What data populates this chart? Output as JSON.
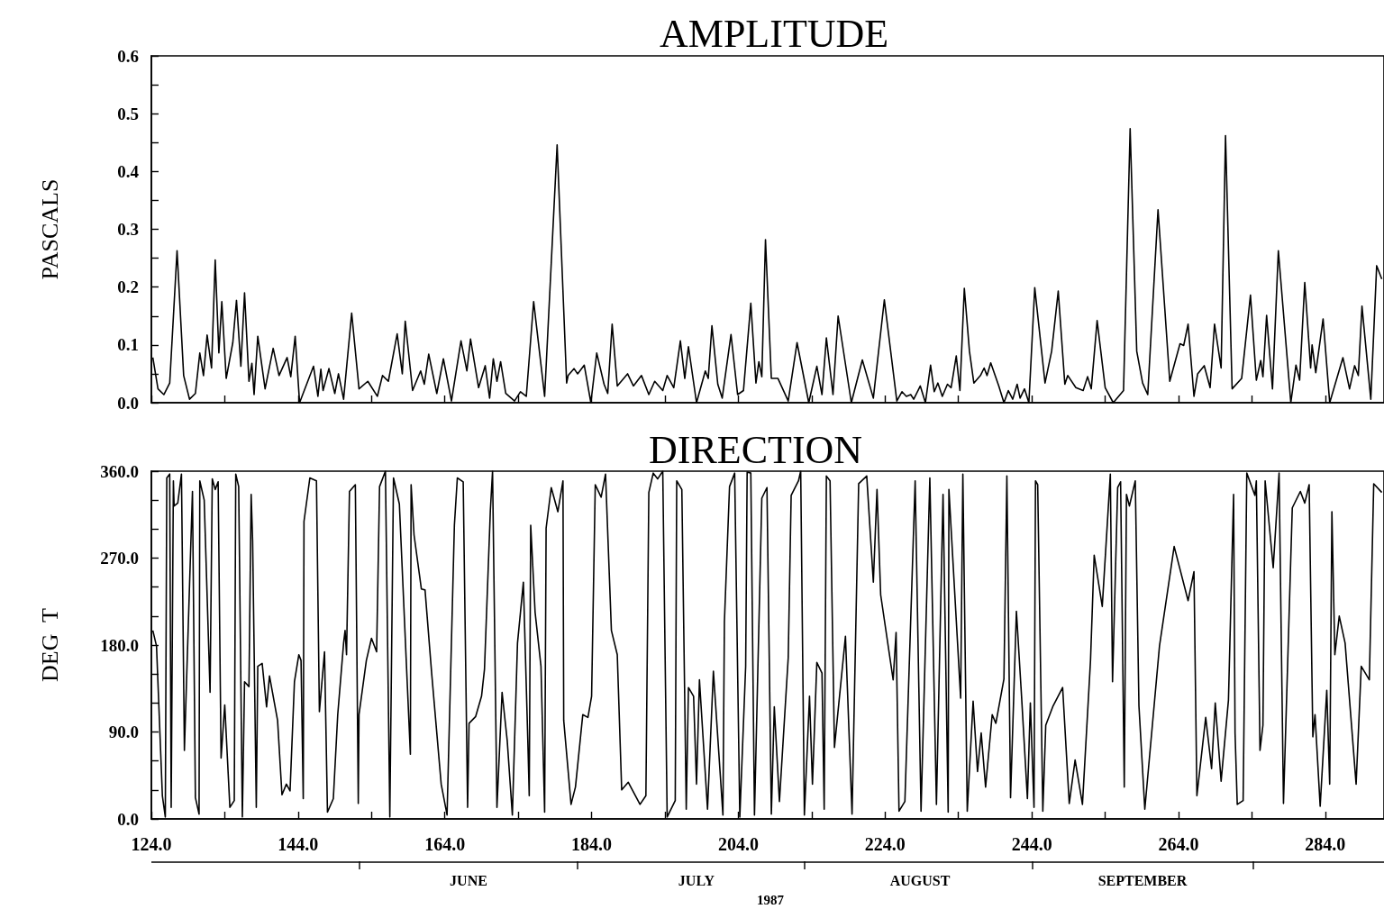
{
  "chart_data": [
    {
      "type": "line",
      "title": "AMPLITUDE",
      "ylabel": "PASCALS",
      "color": "#000000",
      "marker": "none",
      "line_style": "solid",
      "grid": false,
      "tick_labels": "y",
      "xlim": [
        124,
        292
      ],
      "xticks": [
        {
          "value": 124,
          "label": null
        },
        {
          "value": 134,
          "label": null
        },
        {
          "value": 144,
          "label": null
        },
        {
          "value": 154,
          "label": null
        },
        {
          "value": 164,
          "label": null
        },
        {
          "value": 174,
          "label": null
        },
        {
          "value": 184,
          "label": null
        },
        {
          "value": 194,
          "label": null
        },
        {
          "value": 204,
          "label": null
        },
        {
          "value": 214,
          "label": null
        },
        {
          "value": 224,
          "label": null
        },
        {
          "value": 234,
          "label": null
        },
        {
          "value": 244,
          "label": null
        },
        {
          "value": 254,
          "label": null
        },
        {
          "value": 264,
          "label": null
        },
        {
          "value": 274,
          "label": null
        },
        {
          "value": 284,
          "label": null
        }
      ],
      "ylim": [
        0,
        0.6
      ],
      "yticks": [
        {
          "value": 0,
          "label": "0.0"
        },
        {
          "value": 0.05,
          "label": null
        },
        {
          "value": 0.1,
          "label": "0.1"
        },
        {
          "value": 0.15,
          "label": null
        },
        {
          "value": 0.2,
          "label": "0.2"
        },
        {
          "value": 0.25,
          "label": null
        },
        {
          "value": 0.3,
          "label": "0.3"
        },
        {
          "value": 0.35,
          "label": null
        },
        {
          "value": 0.4,
          "label": "0.4"
        },
        {
          "value": 0.45,
          "label": null
        },
        {
          "value": 0.5,
          "label": "0.5"
        },
        {
          "value": 0.55,
          "label": null
        },
        {
          "value": 0.6,
          "label": "0.6"
        }
      ],
      "x": [
        124.2,
        124.9,
        125.7,
        126.5,
        127.5,
        128.4,
        129.2,
        130.0,
        130.6,
        131.1,
        131.6,
        132.2,
        132.7,
        133.2,
        133.6,
        134.2,
        135.1,
        135.6,
        136.2,
        136.7,
        137.3,
        137.7,
        138.0,
        138.5,
        139.5,
        140.6,
        141.4,
        142.5,
        143.0,
        143.6,
        144.2,
        146.1,
        146.7,
        147.1,
        147.4,
        148.2,
        149.0,
        149.5,
        150.2,
        151.3,
        152.3,
        153.5,
        154.8,
        155.5,
        156.3,
        157.5,
        158.2,
        158.6,
        159.6,
        160.7,
        161.2,
        161.8,
        162.9,
        163.8,
        164.9,
        166.2,
        167.0,
        167.5,
        168.6,
        169.5,
        170.1,
        170.6,
        171.1,
        171.6,
        172.3,
        173.5,
        174.3,
        175.1,
        176.1,
        177.6,
        179.3,
        180.6,
        180.8,
        181.6,
        182.1,
        183.0,
        183.9,
        184.7,
        185.7,
        186.2,
        186.8,
        187.5,
        188.9,
        189.7,
        190.8,
        191.8,
        192.6,
        193.7,
        194.3,
        195.2,
        196.1,
        196.7,
        197.2,
        198.3,
        199.5,
        199.9,
        200.4,
        201.2,
        201.8,
        203.0,
        203.9,
        204.7,
        205.7,
        206.4,
        206.8,
        207.2,
        207.7,
        208.5,
        209.4,
        210.8,
        212.0,
        213.6,
        214.7,
        215.4,
        216.0,
        216.9,
        217.6,
        219.4,
        220.9,
        222.4,
        223.9,
        225.6,
        226.3,
        226.9,
        227.5,
        227.9,
        228.8,
        229.5,
        230.2,
        230.7,
        231.2,
        231.8,
        232.5,
        233.0,
        233.7,
        234.2,
        234.8,
        235.5,
        236.1,
        237.0,
        237.5,
        237.9,
        238.4,
        239.5,
        240.2,
        240.8,
        241.4,
        242.0,
        242.4,
        243.0,
        243.6,
        244.4,
        245.8,
        246.7,
        247.6,
        248.5,
        248.9,
        250.0,
        251.0,
        251.6,
        252.1,
        252.9,
        254.0,
        255.1,
        256.5,
        257.4,
        258.3,
        259.1,
        259.8,
        261.2,
        262.8,
        264.2,
        264.7,
        265.3,
        266.1,
        266.6,
        267.5,
        268.3,
        268.9,
        269.8,
        270.4,
        271.3,
        272.6,
        273.8,
        274.6,
        275.2,
        275.5,
        276.0,
        276.8,
        277.6,
        279.3,
        280.0,
        280.5,
        281.2,
        282.0,
        282.2,
        282.7,
        283.7,
        284.6,
        286.4,
        287.3,
        288.0,
        288.5,
        289.0,
        290.2,
        291.0,
        291.7
      ],
      "values": [
        0.078,
        0.024,
        0.014,
        0.034,
        0.263,
        0.047,
        0.006,
        0.016,
        0.086,
        0.047,
        0.117,
        0.06,
        0.247,
        0.086,
        0.175,
        0.042,
        0.104,
        0.177,
        0.063,
        0.19,
        0.037,
        0.068,
        0.014,
        0.115,
        0.024,
        0.094,
        0.047,
        0.078,
        0.045,
        0.115,
        0.0,
        0.063,
        0.011,
        0.058,
        0.021,
        0.059,
        0.016,
        0.05,
        0.006,
        0.155,
        0.024,
        0.037,
        0.011,
        0.047,
        0.037,
        0.119,
        0.05,
        0.141,
        0.021,
        0.055,
        0.032,
        0.084,
        0.016,
        0.076,
        0.003,
        0.107,
        0.055,
        0.11,
        0.026,
        0.064,
        0.008,
        0.076,
        0.037,
        0.071,
        0.016,
        0.003,
        0.019,
        0.011,
        0.175,
        0.011,
        0.446,
        0.034,
        0.047,
        0.059,
        0.05,
        0.065,
        0.0,
        0.086,
        0.032,
        0.016,
        0.136,
        0.029,
        0.05,
        0.029,
        0.047,
        0.014,
        0.037,
        0.021,
        0.047,
        0.026,
        0.107,
        0.042,
        0.097,
        0.0,
        0.055,
        0.042,
        0.133,
        0.032,
        0.008,
        0.118,
        0.014,
        0.021,
        0.172,
        0.034,
        0.071,
        0.045,
        0.282,
        0.042,
        0.042,
        0.003,
        0.104,
        0.0,
        0.063,
        0.014,
        0.112,
        0.014,
        0.15,
        0.0,
        0.074,
        0.008,
        0.178,
        0.003,
        0.019,
        0.011,
        0.014,
        0.006,
        0.029,
        0.0,
        0.065,
        0.019,
        0.034,
        0.011,
        0.032,
        0.026,
        0.081,
        0.021,
        0.198,
        0.089,
        0.034,
        0.047,
        0.06,
        0.047,
        0.069,
        0.029,
        0.0,
        0.021,
        0.006,
        0.032,
        0.008,
        0.024,
        0.0,
        0.199,
        0.034,
        0.089,
        0.193,
        0.032,
        0.047,
        0.026,
        0.021,
        0.045,
        0.024,
        0.142,
        0.026,
        0.0,
        0.021,
        0.474,
        0.089,
        0.034,
        0.014,
        0.334,
        0.037,
        0.102,
        0.099,
        0.136,
        0.011,
        0.05,
        0.064,
        0.026,
        0.136,
        0.06,
        0.462,
        0.024,
        0.042,
        0.186,
        0.039,
        0.073,
        0.045,
        0.151,
        0.024,
        0.263,
        0.0,
        0.065,
        0.039,
        0.208,
        0.06,
        0.1,
        0.052,
        0.145,
        0.0,
        0.078,
        0.024,
        0.064,
        0.047,
        0.167,
        0.006,
        0.237,
        0.214
      ]
    },
    {
      "type": "line",
      "title": "DIRECTION",
      "ylabel": "DEG  T",
      "color": "#000000",
      "marker": "none",
      "line_style": "solid",
      "grid": false,
      "xlim": [
        124,
        292
      ],
      "xticks": [
        {
          "value": 124,
          "label": "124.0"
        },
        {
          "value": 134,
          "label": null
        },
        {
          "value": 144,
          "label": "144.0"
        },
        {
          "value": 154,
          "label": null
        },
        {
          "value": 164,
          "label": "164.0"
        },
        {
          "value": 174,
          "label": null
        },
        {
          "value": 184,
          "label": "184.0"
        },
        {
          "value": 194,
          "label": null
        },
        {
          "value": 204,
          "label": "204.0"
        },
        {
          "value": 214,
          "label": null
        },
        {
          "value": 224,
          "label": "224.0"
        },
        {
          "value": 234,
          "label": null
        },
        {
          "value": 244,
          "label": "244.0"
        },
        {
          "value": 254,
          "label": null
        },
        {
          "value": 264,
          "label": "264.0"
        },
        {
          "value": 274,
          "label": null
        },
        {
          "value": 284,
          "label": "284.0"
        }
      ],
      "annotations": [
        "JUNE",
        "JULY",
        "AUGUST",
        "SEPTEMBER",
        "1987"
      ],
      "ylim": [
        0,
        360
      ],
      "yticks": [
        {
          "value": 0,
          "label": "0.0"
        },
        {
          "value": 30,
          "label": null
        },
        {
          "value": 60,
          "label": null
        },
        {
          "value": 90,
          "label": "90.0"
        },
        {
          "value": 120,
          "label": null
        },
        {
          "value": 150,
          "label": null
        },
        {
          "value": 180,
          "label": "180.0"
        },
        {
          "value": 210,
          "label": null
        },
        {
          "value": 240,
          "label": null
        },
        {
          "value": 270,
          "label": "270.0"
        },
        {
          "value": 300,
          "label": null
        },
        {
          "value": 330,
          "label": null
        },
        {
          "value": 360,
          "label": "360.0"
        }
      ],
      "x": [
        124.2,
        124.7,
        125.5,
        125.9,
        126.1,
        126.5,
        126.7,
        127.0,
        127.1,
        127.6,
        128.1,
        128.5,
        129.6,
        130.0,
        130.5,
        130.6,
        131.2,
        132.0,
        132.3,
        132.7,
        133.1,
        133.5,
        134.0,
        134.7,
        135.3,
        135.5,
        135.9,
        136.4,
        136.7,
        137.3,
        137.6,
        137.8,
        138.3,
        138.5,
        139.1,
        139.7,
        140.1,
        141.2,
        141.8,
        142.4,
        142.9,
        143.5,
        144.1,
        144.4,
        144.7,
        144.8,
        145.6,
        146.5,
        146.9,
        147.6,
        148.0,
        148.8,
        149.4,
        150.2,
        150.4,
        150.6,
        151.0,
        151.8,
        152.2,
        152.3,
        153.3,
        154.0,
        154.7,
        155.1,
        155.9,
        156.5,
        157.0,
        157.8,
        159.3,
        159.4,
        159.8,
        160.8,
        161.3,
        162.2,
        163.5,
        164.3,
        165.3,
        165.7,
        166.5,
        167.1,
        167.3,
        168.2,
        169.0,
        169.4,
        170.2,
        170.5,
        171.1,
        171.8,
        172.5,
        173.2,
        173.9,
        174.7,
        175.3,
        175.5,
        175.7,
        176.3,
        177.1,
        177.6,
        177.8,
        178.5,
        179.4,
        180.1,
        180.2,
        181.2,
        181.8,
        182.8,
        183.5,
        184.0,
        184.5,
        185.3,
        185.9,
        186.7,
        187.5,
        188.1,
        189.0,
        190.6,
        191.4,
        191.8,
        192.4,
        193.0,
        193.7,
        194.3,
        195.4,
        195.6,
        196.3,
        196.9,
        197.2,
        197.9,
        198.3,
        198.7,
        199.8,
        200.6,
        201.9,
        202.1,
        202.8,
        203.5,
        204.2,
        205.0,
        205.2,
        205.7,
        206.2,
        207.2,
        207.9,
        208.5,
        208.9,
        209.6,
        210.8,
        211.2,
        212.2,
        212.5,
        213.0,
        213.7,
        214.1,
        214.7,
        215.4,
        215.7,
        216.0,
        216.5,
        217.1,
        218.6,
        219.5,
        220.4,
        221.5,
        222.4,
        222.9,
        223.4,
        225.1,
        225.5,
        225.9,
        226.7,
        228.1,
        228.9,
        230.1,
        231.0,
        231.9,
        232.6,
        232.7,
        234.3,
        234.6,
        235.2,
        236.0,
        236.6,
        237.1,
        237.7,
        238.6,
        239.1,
        240.2,
        240.6,
        241.1,
        241.9,
        242.6,
        243.4,
        243.8,
        244.3,
        244.5,
        244.8,
        245.5,
        245.9,
        246.9,
        248.2,
        249.1,
        249.9,
        250.9,
        252.0,
        252.5,
        253.6,
        254.3,
        254.7,
        255.0,
        255.7,
        256.1,
        256.6,
        256.9,
        257.3,
        258.1,
        258.6,
        259.4,
        261.4,
        263.4,
        265.3,
        266.1,
        266.5,
        267.7,
        268.5,
        269.0,
        269.8,
        270.8,
        271.5,
        271.7,
        272.0,
        272.8,
        273.3,
        274.4,
        274.6,
        275.1,
        275.5,
        275.8,
        276.9,
        277.7,
        278.3,
        279.5,
        280.6,
        281.2,
        281.8,
        282.3,
        282.6,
        283.3,
        284.2,
        284.6,
        284.9,
        285.3,
        285.9,
        286.7,
        288.2,
        288.9,
        290.0,
        290.6,
        291.7
      ],
      "values": [
        195,
        179,
        24,
        2,
        353,
        357,
        12,
        350,
        324,
        327,
        357,
        71,
        339,
        22,
        5,
        350,
        330,
        131,
        352,
        341,
        349,
        63,
        118,
        12,
        19,
        357,
        344,
        2,
        142,
        137,
        336,
        288,
        12,
        158,
        161,
        116,
        148,
        102,
        25,
        36,
        29,
        142,
        170,
        164,
        21,
        308,
        353,
        350,
        111,
        173,
        7,
        21,
        108,
        182,
        195,
        170,
        339,
        346,
        16,
        108,
        164,
        187,
        173,
        344,
        360,
        2,
        353,
        326,
        67,
        346,
        294,
        238,
        237,
        151,
        36,
        4,
        304,
        353,
        349,
        12,
        99,
        106,
        127,
        155,
        319,
        360,
        12,
        131,
        81,
        4,
        182,
        245,
        83,
        24,
        304,
        214,
        158,
        7,
        301,
        343,
        318,
        350,
        102,
        15,
        33,
        108,
        105,
        127,
        346,
        333,
        357,
        195,
        170,
        30,
        38,
        15,
        24,
        338,
        358,
        352,
        360,
        2,
        19,
        350,
        341,
        10,
        136,
        127,
        36,
        144,
        10,
        153,
        4,
        204,
        344,
        358,
        2,
        158,
        359,
        358,
        4,
        332,
        343,
        5,
        116,
        18,
        167,
        335,
        350,
        360,
        4,
        127,
        36,
        162,
        151,
        10,
        355,
        350,
        74,
        189,
        5,
        347,
        355,
        245,
        341,
        232,
        144,
        193,
        8,
        18,
        350,
        8,
        353,
        15,
        336,
        7,
        341,
        125,
        357,
        8,
        122,
        49,
        89,
        33,
        108,
        99,
        145,
        355,
        22,
        215,
        127,
        21,
        120,
        12,
        350,
        346,
        8,
        97,
        117,
        136,
        16,
        61,
        15,
        164,
        273,
        220,
        307,
        357,
        142,
        343,
        349,
        33,
        336,
        324,
        350,
        117,
        10,
        179,
        282,
        226,
        256,
        24,
        105,
        52,
        120,
        39,
        123,
        336,
        89,
        15,
        19,
        358,
        335,
        350,
        71,
        97,
        350,
        260,
        358,
        16,
        322,
        339,
        327,
        346,
        85,
        108,
        13,
        133,
        36,
        318,
        170,
        210,
        182,
        36,
        158,
        144,
        347,
        338
      ]
    }
  ]
}
